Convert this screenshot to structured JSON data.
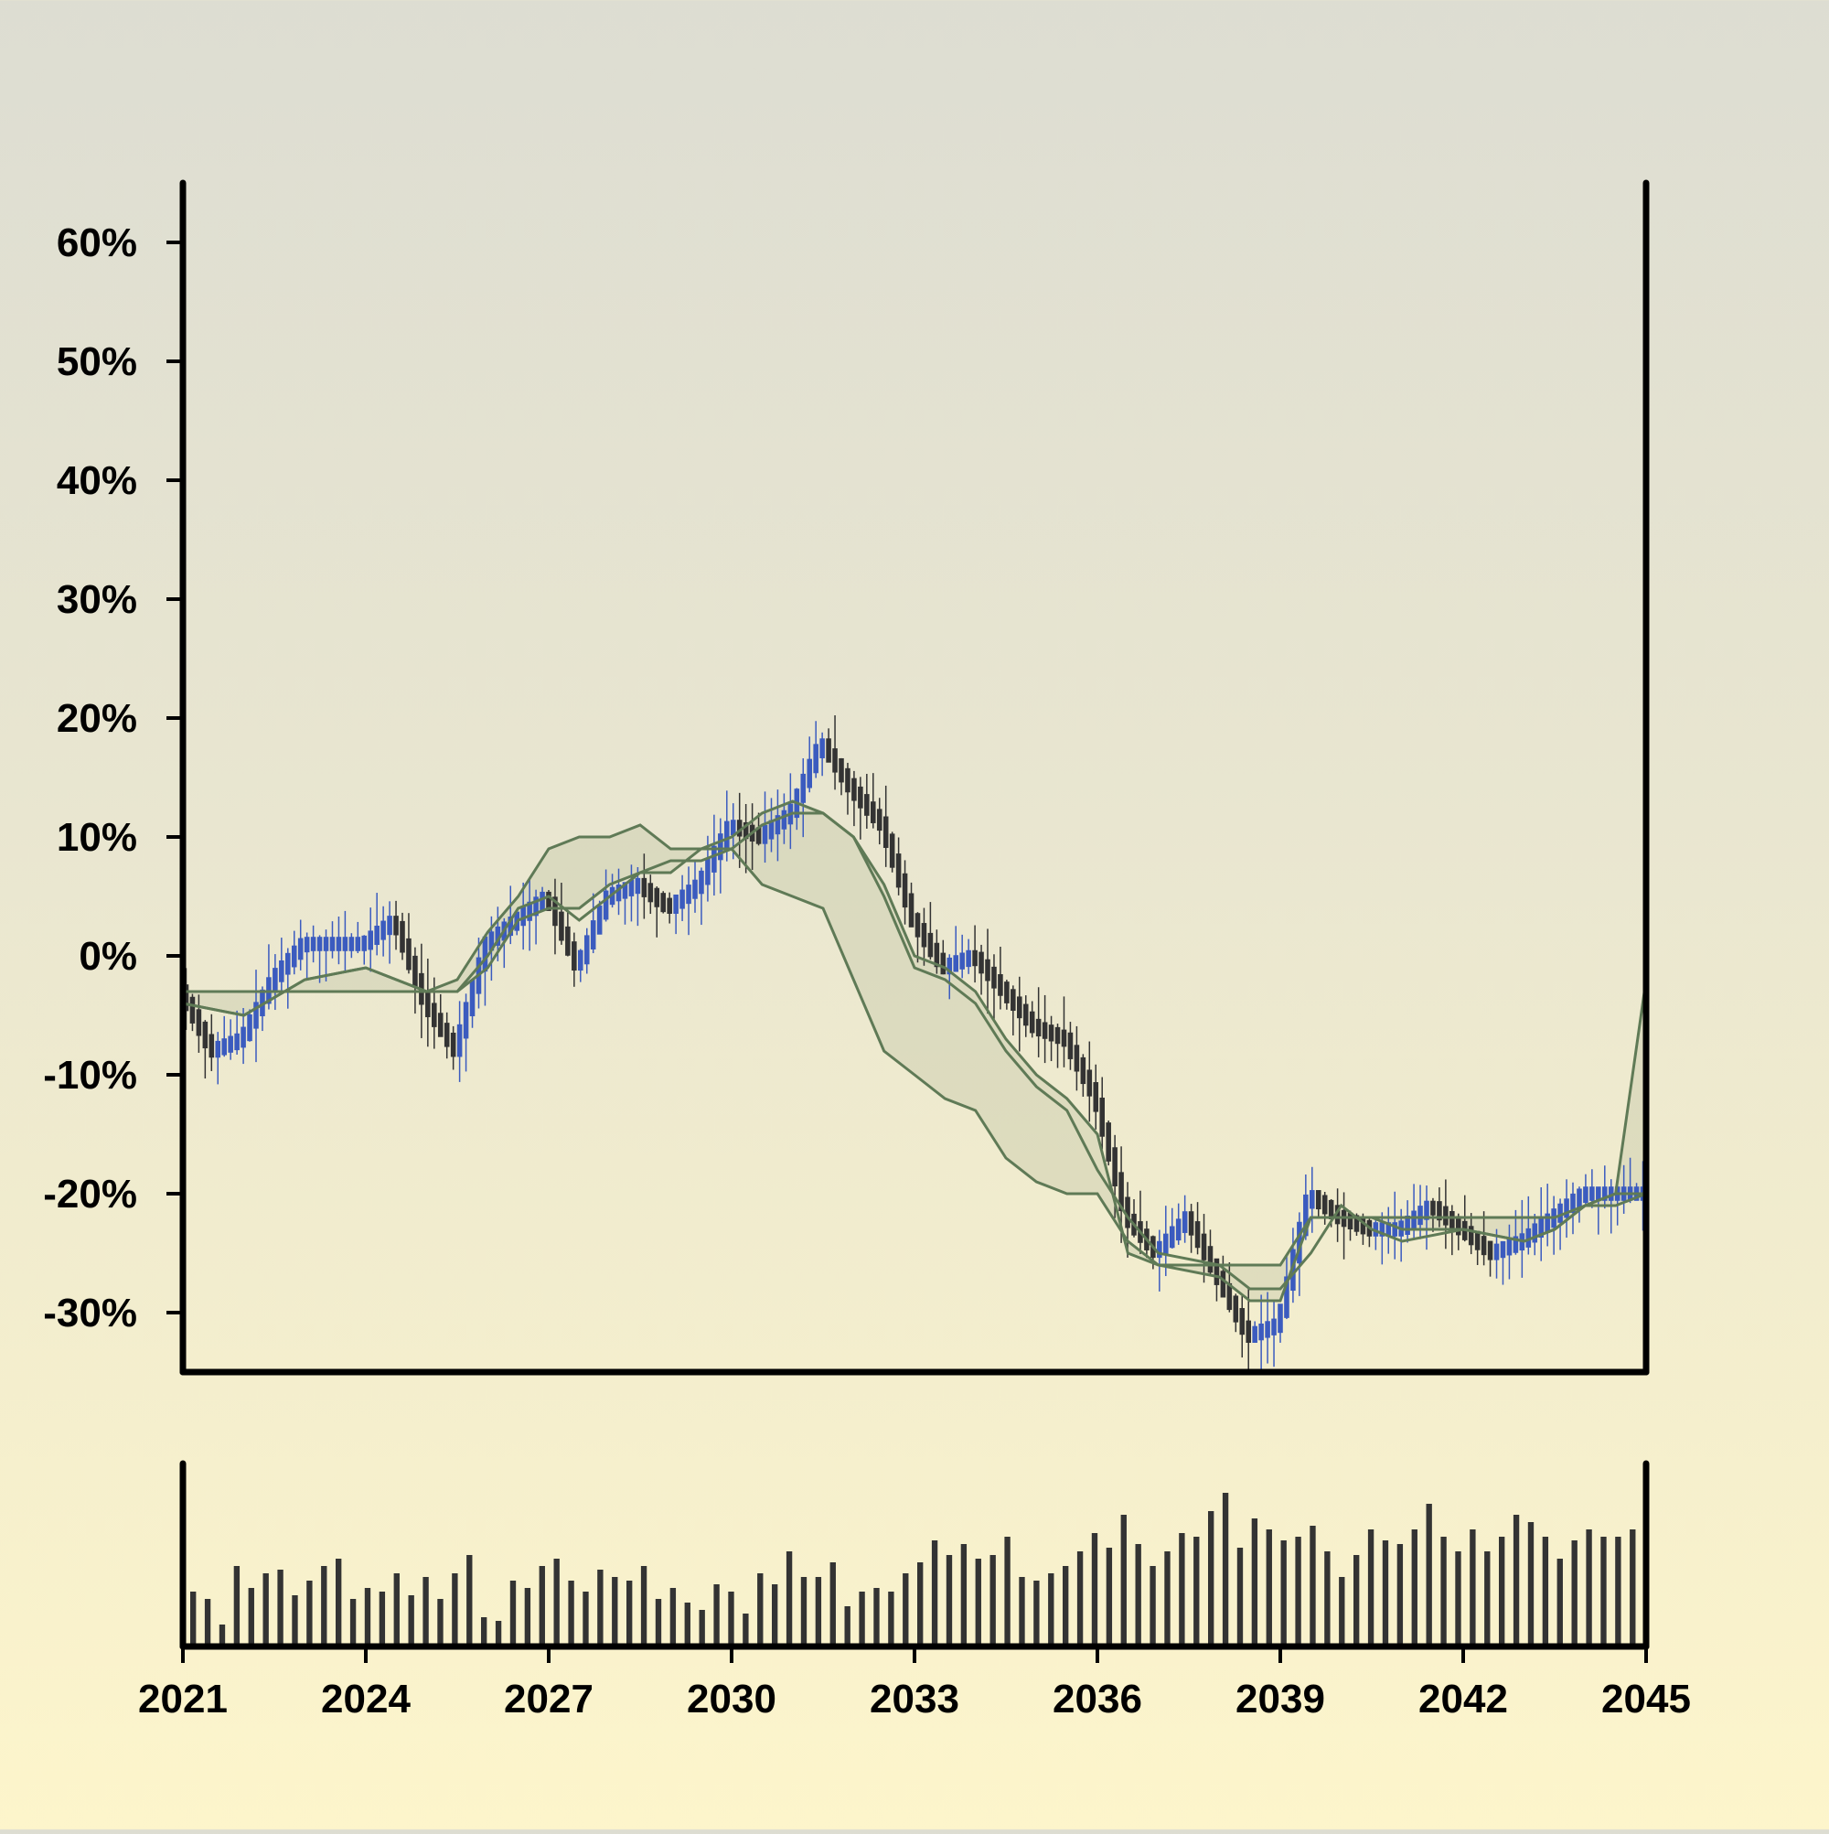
{
  "chart_data": [
    {
      "type": "candlestick",
      "title": "",
      "xlabel": "",
      "ylabel": "",
      "x_tick_labels": [
        "2021",
        "2024",
        "2027",
        "2030",
        "2033",
        "2036",
        "2039",
        "2042",
        "2045"
      ],
      "y_tick_labels": [
        "-30%",
        "-20%",
        "-10%",
        "0%",
        "10%",
        "20%",
        "30%",
        "40%",
        "50%",
        "60%"
      ],
      "xlim": [
        2021,
        2045
      ],
      "ylim": [
        -35,
        65
      ],
      "grid": false,
      "legend": "none",
      "colors": {
        "up_candle": "#3b5bbf",
        "down_candle": "#333333",
        "band_line": "#5f7a56",
        "band_fill": "#c8c9ab",
        "axis": "#000000"
      },
      "series": [
        {
          "role": "price-close",
          "x": [
            2021.0,
            2021.5,
            2022.0,
            2022.5,
            2023.0,
            2023.5,
            2024.0,
            2024.5,
            2025.0,
            2025.5,
            2026.0,
            2026.5,
            2027.0,
            2027.5,
            2028.0,
            2028.5,
            2029.0,
            2029.5,
            2030.0,
            2030.5,
            2031.0,
            2031.5,
            2032.0,
            2032.5,
            2033.0,
            2033.5,
            2034.0,
            2034.5,
            2035.0,
            2035.5,
            2036.0,
            2036.5,
            2037.0,
            2037.5,
            2038.0,
            2038.5,
            2039.0,
            2039.5,
            2040.0,
            2040.5,
            2041.0,
            2041.5,
            2042.0,
            2042.5,
            2043.0,
            2043.5,
            2044.0,
            2044.5,
            2045.0
          ],
          "y": [
            -3,
            -8,
            -7,
            -2,
            1,
            1,
            1,
            3,
            -4,
            -8,
            1,
            3,
            5,
            -1,
            5,
            6,
            4,
            6,
            11,
            10,
            12,
            18,
            14,
            11,
            3,
            -1,
            0,
            -3,
            -6,
            -7,
            -12,
            -22,
            -25,
            -22,
            -27,
            -32,
            -31,
            -20,
            -22,
            -23,
            -23,
            -21,
            -23,
            -25,
            -24,
            -22,
            -20,
            -20,
            -20
          ]
        },
        {
          "role": "upper-band",
          "x": [
            2021.0,
            2022.0,
            2023.0,
            2024.0,
            2025.0,
            2025.5,
            2026.0,
            2026.5,
            2027.0,
            2027.5,
            2028.0,
            2028.5,
            2029.0,
            2029.5,
            2030.0,
            2030.5,
            2031.0,
            2031.5,
            2032.0,
            2032.5,
            2033.0,
            2033.5,
            2034.0,
            2034.5,
            2035.0,
            2035.5,
            2036.0,
            2036.5,
            2037.0,
            2038.0,
            2039.0,
            2039.5,
            2040.0,
            2040.5,
            2041.0,
            2042.0,
            2043.0,
            2043.5,
            2044.0,
            2044.5,
            2045.0
          ],
          "y": [
            -3,
            -3,
            -3,
            -3,
            -3,
            -2,
            2,
            5,
            9,
            10,
            10,
            11,
            9,
            9,
            10,
            12,
            13,
            12,
            10,
            6,
            0,
            -1,
            -3,
            -7,
            -10,
            -12,
            -15,
            -25,
            -26,
            -26,
            -26,
            -22,
            -22,
            -22,
            -22,
            -22,
            -22,
            -22,
            -21,
            -20,
            -2
          ]
        },
        {
          "role": "middle-band",
          "x": [
            2021.0,
            2022.0,
            2023.0,
            2024.0,
            2025.0,
            2025.5,
            2026.0,
            2026.5,
            2027.0,
            2027.5,
            2028.0,
            2028.5,
            2029.0,
            2029.5,
            2030.0,
            2030.5,
            2031.0,
            2031.5,
            2032.0,
            2032.5,
            2033.0,
            2033.5,
            2034.0,
            2034.5,
            2035.0,
            2035.5,
            2036.0,
            2036.5,
            2037.0,
            2038.0,
            2038.5,
            2039.0,
            2039.5,
            2040.0,
            2040.5,
            2041.0,
            2042.0,
            2043.0,
            2043.5,
            2044.0,
            2044.5,
            2045.0
          ],
          "y": [
            -4,
            -5,
            -2,
            -1,
            -3,
            -3,
            0,
            4,
            5,
            3,
            5,
            7,
            8,
            8,
            9,
            11,
            12,
            12,
            10,
            5,
            -1,
            -2,
            -4,
            -8,
            -11,
            -13,
            -18,
            -22,
            -25,
            -26,
            -28,
            -28,
            -25,
            -21,
            -23,
            -24,
            -23,
            -24,
            -23,
            -21,
            -20,
            -20
          ]
        },
        {
          "role": "lower-band",
          "x": [
            2021.0,
            2022.0,
            2023.0,
            2024.0,
            2025.0,
            2025.5,
            2026.0,
            2026.5,
            2027.0,
            2027.5,
            2028.0,
            2028.5,
            2029.0,
            2029.5,
            2030.0,
            2030.5,
            2031.0,
            2031.5,
            2032.0,
            2032.5,
            2033.0,
            2033.5,
            2034.0,
            2034.5,
            2035.0,
            2035.5,
            2036.0,
            2036.5,
            2037.0,
            2038.0,
            2038.5,
            2039.0,
            2039.5,
            2040.0,
            2040.5,
            2041.0,
            2042.0,
            2043.0,
            2043.5,
            2044.0,
            2044.5,
            2045.0
          ],
          "y": [
            -4,
            -5,
            -2,
            -1,
            -3,
            -3,
            -1,
            3,
            4,
            4,
            6,
            7,
            7,
            9,
            9,
            6,
            5,
            4,
            -2,
            -8,
            -10,
            -12,
            -13,
            -17,
            -19,
            -20,
            -20,
            -24,
            -26,
            -27,
            -29,
            -29,
            -22,
            -22,
            -22,
            -23,
            -23,
            -24,
            -23,
            -21,
            -21,
            -20
          ]
        }
      ]
    },
    {
      "type": "bar",
      "role": "volume",
      "title": "",
      "xlim": [
        2021,
        2045
      ],
      "ylim": [
        0,
        100
      ],
      "values": [
        30,
        26,
        12,
        44,
        32,
        40,
        42,
        28,
        36,
        44,
        48,
        26,
        32,
        30,
        40,
        28,
        38,
        26,
        40,
        50,
        16,
        14,
        36,
        32,
        44,
        48,
        36,
        30,
        42,
        38,
        36,
        44,
        26,
        32,
        24,
        20,
        34,
        30,
        18,
        40,
        34,
        52,
        38,
        38,
        46,
        22,
        30,
        32,
        30,
        40,
        46,
        58,
        50,
        56,
        48,
        50,
        60,
        38,
        36,
        40,
        44,
        52,
        62,
        54,
        72,
        56,
        44,
        52,
        62,
        60,
        74,
        84,
        54,
        70,
        64,
        58,
        60,
        66,
        52,
        38,
        50,
        64,
        58,
        56,
        64,
        78,
        60,
        52,
        64,
        52,
        60,
        72,
        68,
        60,
        48,
        58,
        64,
        60,
        60,
        64
      ]
    }
  ]
}
